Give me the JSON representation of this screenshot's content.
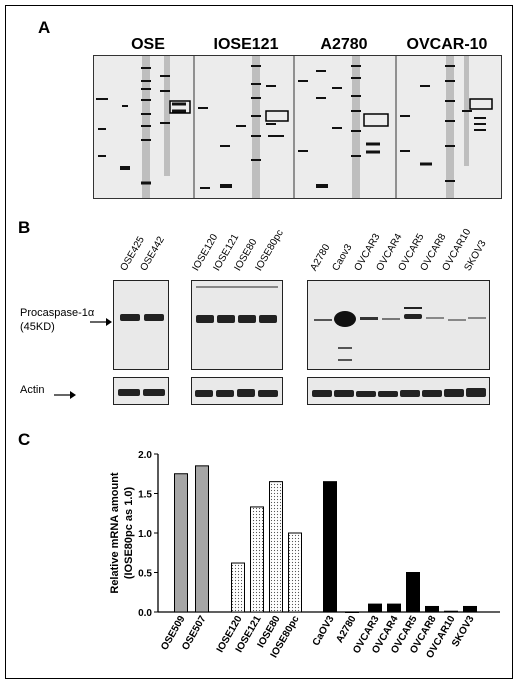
{
  "panel_a": {
    "label": "A",
    "groups": [
      "OSE",
      "IOSE121",
      "A2780",
      "OVCAR-10"
    ]
  },
  "panel_b": {
    "label": "B",
    "group1_lanes": [
      "OSE425",
      "OSE442"
    ],
    "group2_lanes": [
      "IOSE120",
      "IOSE121",
      "IOSE80",
      "IOSE80pc"
    ],
    "group3_lanes": [
      "A2780",
      "Caov3",
      "OVCAR3",
      "OVCAR4",
      "OVCAR5",
      "OVCAR8",
      "OVCAR10",
      "SKOV3"
    ],
    "procaspase_label": "Procaspase-1α",
    "procaspase_size": "(45KD)",
    "actin_label": "Actin"
  },
  "panel_c": {
    "label": "C"
  },
  "chart_data": {
    "type": "bar",
    "ylabel_line1": "Relative mRNA amount",
    "ylabel_line2": "(IOSE80pc as 1.0)",
    "ylim": [
      0,
      2.0
    ],
    "yticks": [
      "0.0",
      "0.5",
      "1.0",
      "1.5",
      "2.0"
    ],
    "categories": [
      "OSE509",
      "OSE507",
      "IOSE120",
      "IOSE121",
      "IOSE80",
      "IOSE80pc",
      "CaOV3",
      "A2780",
      "OVCAR3",
      "OVCAR4",
      "OVCAR5",
      "OVCAR8",
      "OVCAR10",
      "SKOV3"
    ],
    "values": [
      1.75,
      1.85,
      0.62,
      1.33,
      1.65,
      1.0,
      1.65,
      0.0,
      0.1,
      0.1,
      0.5,
      0.07,
      0.01,
      0.07
    ],
    "groups": [
      0,
      0,
      1,
      1,
      1,
      1,
      2,
      2,
      2,
      2,
      2,
      2,
      2,
      2
    ],
    "group_styles": [
      "gray",
      "dotted",
      "black"
    ],
    "colors": {
      "gray": "#a6a6a6",
      "black": "#000000"
    }
  }
}
